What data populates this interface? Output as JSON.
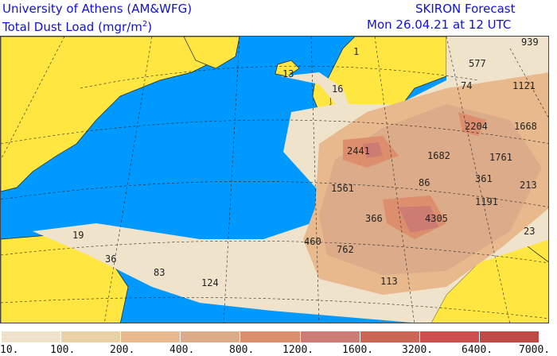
{
  "header": {
    "institution": "University of Athens (AM&WFG)",
    "product_prefix": "Total Dust Load (mgr/m",
    "product_sup": "2",
    "product_suffix": ")",
    "model": "SKIRON Forecast",
    "valid_time": "Mon 26.04.21 at 12 UTC"
  },
  "map_labels": [
    "939",
    "577",
    "74",
    "1121",
    "1",
    "13",
    "16",
    "2204",
    "1668",
    "2441",
    "1682",
    "1761",
    "361",
    "1561",
    "86",
    "213",
    "1191",
    "366",
    "4305",
    "23",
    "460",
    "762",
    "113",
    "19",
    "36",
    "83",
    "124"
  ],
  "colors": {
    "ocean": "#0099ff",
    "land": "#ffe640"
  },
  "legend": {
    "colors": [
      "#efe3cb",
      "#e9d3a6",
      "#e9b98e",
      "#dbab8a",
      "#dd8f6d",
      "#cc7c72",
      "#cb6555",
      "#cc4f4d",
      "#bf4a43"
    ],
    "ticks": [
      "10.",
      "100.",
      "200.",
      "400.",
      "800.",
      "1200.",
      "1600.",
      "3200.",
      "6400.",
      "7000."
    ]
  }
}
